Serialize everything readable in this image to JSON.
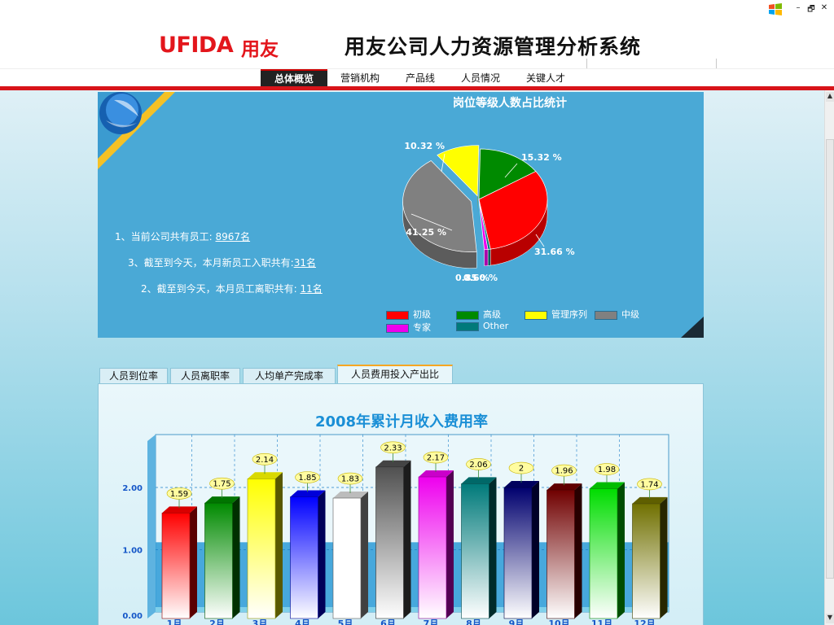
{
  "window": {
    "controls": {
      "minimize": "–",
      "maximize": "🗗",
      "close": "✕"
    }
  },
  "header": {
    "brand_latin": "UFIDA",
    "brand_cn": "用友",
    "title": "用友公司人力资源管理分析系统"
  },
  "nav": {
    "tabs": [
      {
        "label": "总体概览",
        "active": true
      },
      {
        "label": "营销机构"
      },
      {
        "label": "产品线"
      },
      {
        "label": "人员情况"
      },
      {
        "label": "关键人才"
      }
    ]
  },
  "summary": {
    "stats": [
      {
        "prefix": "1、当前公司共有员工: ",
        "value": "8967名"
      },
      {
        "prefix": "3、截至到今天，本月新员工入职共有:",
        "value": "31名"
      },
      {
        "prefix": "2、截至到今天，本月员工离职共有: ",
        "value": "11名"
      }
    ]
  },
  "tabs": [
    {
      "label": "人员到位率"
    },
    {
      "label": "人员离职率"
    },
    {
      "label": "人均单产完成率"
    },
    {
      "label": "人员费用投入产出比",
      "active": true
    }
  ],
  "chart_data": [
    {
      "type": "pie",
      "title": "岗位等级人数占比统计",
      "slices": [
        {
          "name": "初级",
          "value": 31.66,
          "label": "31.66 %",
          "color": "#ff0000"
        },
        {
          "name": "高级",
          "value": 15.32,
          "label": "15.32 %",
          "color": "#008a00"
        },
        {
          "name": "管理序列",
          "value": 10.32,
          "label": "10.32 %",
          "color": "#ffff00"
        },
        {
          "name": "中级",
          "value": 41.25,
          "label": "41.25 %",
          "color": "#808080"
        },
        {
          "name": "专家",
          "value": 0.85,
          "label": "0.85 %",
          "color": "#ee00ee"
        },
        {
          "name": "Other",
          "value": 0.6,
          "label": "0.60 %",
          "color": "#007a7a"
        }
      ],
      "legend_position": "bottom"
    },
    {
      "type": "bar",
      "title": "2008年累计月收入费用率",
      "categories": [
        "1月",
        "2月",
        "3月",
        "4月",
        "5月",
        "6月",
        "7月",
        "8月",
        "9月",
        "10月",
        "11月",
        "12月"
      ],
      "values": [
        1.59,
        1.75,
        2.14,
        1.85,
        1.83,
        2.33,
        2.17,
        2.06,
        2,
        1.96,
        1.98,
        1.74
      ],
      "value_labels": [
        "1.59",
        "1.75",
        "2.14",
        "1.85",
        "1.83",
        "2.33",
        "2.17",
        "2.06",
        "2",
        "1.96",
        "1.98",
        "1.74"
      ],
      "colors": [
        "#ff0000",
        "#008a00",
        "#ffff00",
        "#0000ff",
        "#ffffff",
        "#505050",
        "#ee00ee",
        "#007a7a",
        "#00006e",
        "#700000",
        "#00dd00",
        "#707000"
      ],
      "y_ticks": [
        "0.00",
        "1.00",
        "2.00"
      ],
      "ylim": [
        0,
        2.85
      ],
      "grid": true
    }
  ]
}
